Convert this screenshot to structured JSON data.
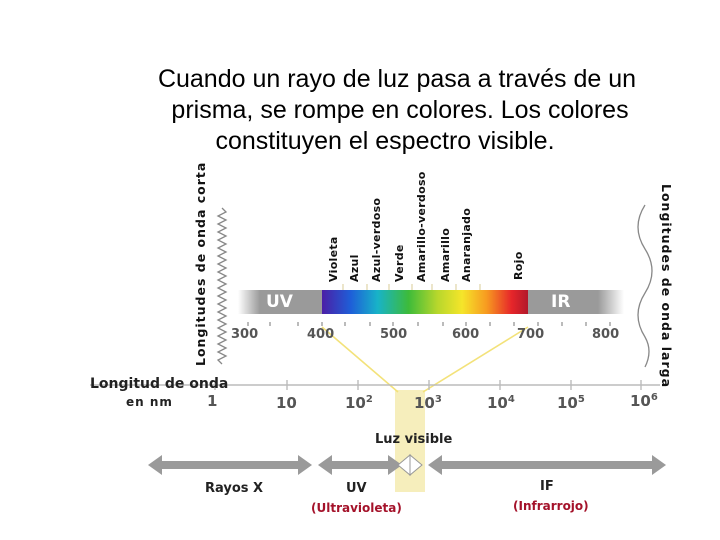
{
  "title": {
    "line1": "Cuando un rayo de luz pasa a través de un",
    "line2": "prisma, se rompe en colores. Los colores",
    "line3": "constituyen el espectro visible."
  },
  "left_side_label": "Longitudes de onda corta",
  "right_side_label": "Longitudes de onda larga",
  "color_labels": [
    "Violeta",
    "Azul",
    "Azul-verdoso",
    "Verde",
    "Amarillo-verdoso",
    "Amarillo",
    "Anaranjado",
    "Rojo"
  ],
  "band": {
    "uv_label": "UV",
    "ir_label": "IR",
    "tick_labels": [
      "300",
      "400",
      "500",
      "600",
      "700",
      "800"
    ]
  },
  "log_axis": {
    "title": "Longitud de onda",
    "unit": "en nm",
    "labels": [
      {
        "base": "1",
        "exp": ""
      },
      {
        "base": "10",
        "exp": ""
      },
      {
        "base": "10",
        "exp": "2"
      },
      {
        "base": "10",
        "exp": "3"
      },
      {
        "base": "10",
        "exp": "4"
      },
      {
        "base": "10",
        "exp": "5"
      },
      {
        "base": "10",
        "exp": "6"
      }
    ]
  },
  "visible_label": "Luz visible",
  "regions": {
    "xray": "Rayos X",
    "uv": "UV",
    "uv_sub": "(Ultravioleta)",
    "ir": "IF",
    "ir_sub": "(Infrarrojo)"
  },
  "colors": {
    "band_gray": "#9a9a9a",
    "connector_yellow": "#f3e27a",
    "highlight_yellow": "#f6eebc",
    "subtitle_red": "#a4122a",
    "arrow_gray": "#9a9a9a"
  }
}
